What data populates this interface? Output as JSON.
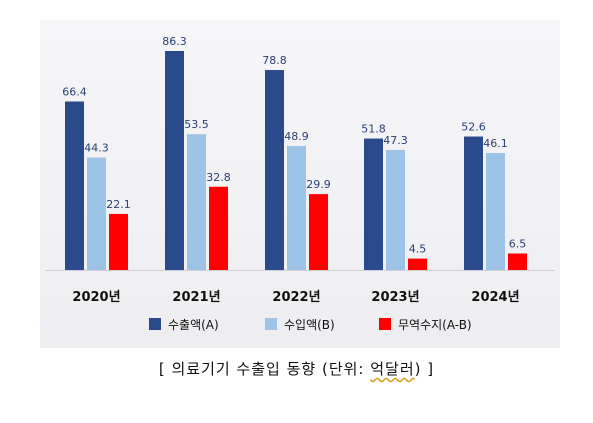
{
  "chart_data": {
    "type": "bar",
    "categories": [
      "2020년",
      "2021년",
      "2022년",
      "2023년",
      "2024년"
    ],
    "series": [
      {
        "name": "수출액(A)",
        "values": [
          66.4,
          86.3,
          78.8,
          51.8,
          52.6
        ],
        "color": "#2a4a8c"
      },
      {
        "name": "수입액(B)",
        "values": [
          44.3,
          53.5,
          48.9,
          47.3,
          46.1
        ],
        "color": "#9dc3e6"
      },
      {
        "name": "무역수지(A-B)",
        "values": [
          22.1,
          32.8,
          29.9,
          4.5,
          6.5
        ],
        "color": "#ff0000"
      }
    ],
    "ylim": [
      0,
      86.3
    ],
    "grid": false,
    "legend": "bottom",
    "data_labels": true
  },
  "caption": {
    "open": "[ ",
    "main": "의료기기 수출입 동향 (단위: ",
    "unit": "억달러",
    "close": ") ]"
  }
}
